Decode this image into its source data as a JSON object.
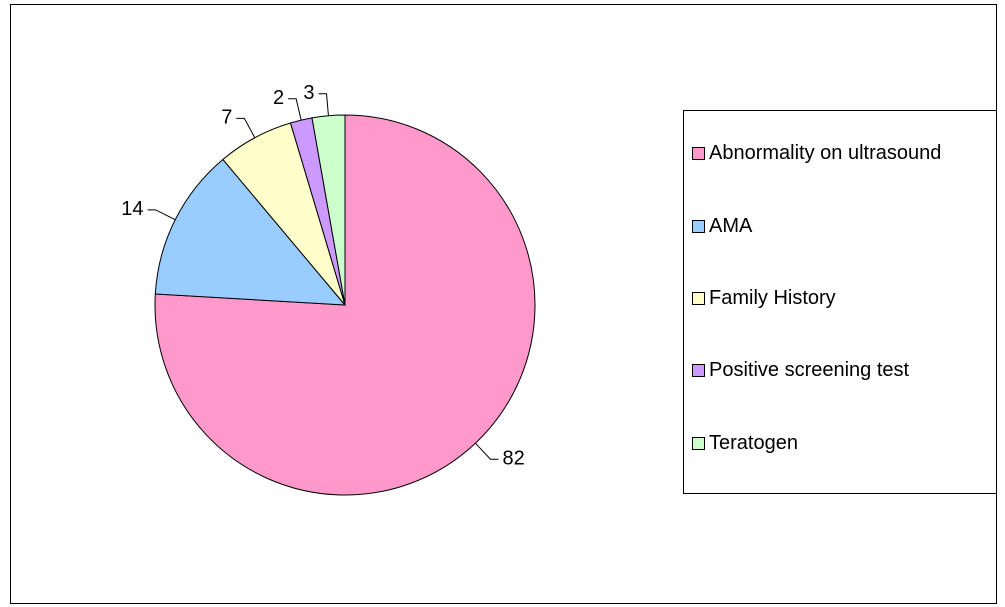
{
  "chart_data": {
    "type": "pie",
    "categories": [
      "Abnormality on ultrasound",
      "AMA",
      "Family History",
      "Positive screening test",
      "Teratogen"
    ],
    "values": [
      82,
      14,
      7,
      2,
      3
    ],
    "colors": [
      "#ff99cc",
      "#99ccff",
      "#ffffcc",
      "#cc99ff",
      "#ccffcc"
    ],
    "legend": "right"
  }
}
